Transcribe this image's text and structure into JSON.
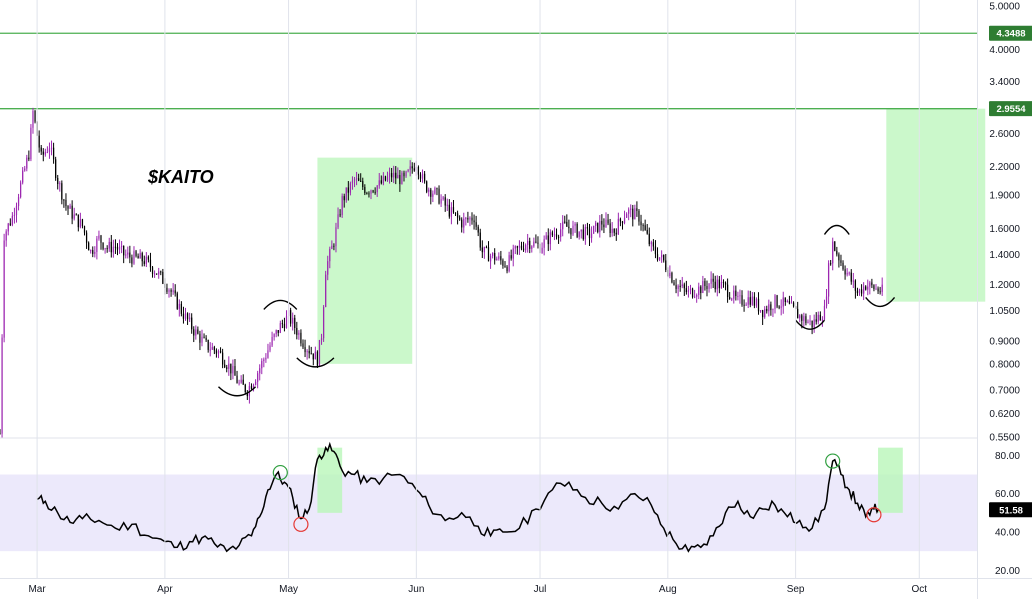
{
  "title": "$KAITO",
  "colors": {
    "up": "#9c27b0",
    "down": "#000000",
    "level_line": "#4caf50",
    "target_box": "#b9f6b9",
    "rsi_band": "#ece9fb",
    "rsi_line": "#000000",
    "grid": "#e0e3eb",
    "badge_green": "#2e7d32",
    "badge_black": "#000000",
    "circle_green": "#2e9e3e",
    "circle_red": "#e53935"
  },
  "chart_data": [
    {
      "type": "candlestick",
      "name": "price",
      "title": "$KAITO",
      "yscale": "log",
      "ylim": [
        0.55,
        5.0
      ],
      "xlim": [
        "2025-02-20",
        "2025-10-15"
      ],
      "x_ticks": [
        {
          "label": "Mar",
          "date": "2025-03-01"
        },
        {
          "label": "Apr",
          "date": "2025-04-01"
        },
        {
          "label": "May",
          "date": "2025-05-01"
        },
        {
          "label": "Jun",
          "date": "2025-06-01"
        },
        {
          "label": "Jul",
          "date": "2025-07-01"
        },
        {
          "label": "Aug",
          "date": "2025-08-01"
        },
        {
          "label": "Sep",
          "date": "2025-09-01"
        },
        {
          "label": "Oct",
          "date": "2025-10-01"
        }
      ],
      "y_ticks": [
        "5.0000",
        "4.0000",
        "3.4000",
        "2.6000",
        "2.2000",
        "1.9000",
        "1.6000",
        "1.4000",
        "1.2000",
        "1.0500",
        "0.9000",
        "0.8000",
        "0.7000",
        "0.6200",
        "0.5500"
      ],
      "levels": [
        {
          "label": "4.3488",
          "value": 4.3488
        },
        {
          "label": "2.9554",
          "value": 2.9554
        }
      ],
      "path_points": [
        [
          "2025-02-20",
          0.56
        ],
        [
          "2025-02-21",
          1.55
        ],
        [
          "2025-02-23",
          1.7
        ],
        [
          "2025-02-25",
          2.0
        ],
        [
          "2025-02-27",
          2.35
        ],
        [
          "2025-02-28",
          2.9
        ],
        [
          "2025-03-02",
          2.3
        ],
        [
          "2025-03-04",
          2.45
        ],
        [
          "2025-03-06",
          2.05
        ],
        [
          "2025-03-08",
          1.8
        ],
        [
          "2025-03-10",
          1.7
        ],
        [
          "2025-03-12",
          1.62
        ],
        [
          "2025-03-14",
          1.42
        ],
        [
          "2025-03-16",
          1.52
        ],
        [
          "2025-03-18",
          1.45
        ],
        [
          "2025-03-20",
          1.46
        ],
        [
          "2025-03-22",
          1.4
        ],
        [
          "2025-03-24",
          1.38
        ],
        [
          "2025-03-27",
          1.36
        ],
        [
          "2025-03-30",
          1.28
        ],
        [
          "2025-04-02",
          1.18
        ],
        [
          "2025-04-05",
          1.05
        ],
        [
          "2025-04-08",
          0.95
        ],
        [
          "2025-04-11",
          0.88
        ],
        [
          "2025-04-14",
          0.85
        ],
        [
          "2025-04-17",
          0.78
        ],
        [
          "2025-04-19",
          0.72
        ],
        [
          "2025-04-21",
          0.7
        ],
        [
          "2025-04-23",
          0.75
        ],
        [
          "2025-04-25",
          0.82
        ],
        [
          "2025-04-27",
          0.9
        ],
        [
          "2025-04-29",
          0.97
        ],
        [
          "2025-05-01",
          1.02
        ],
        [
          "2025-05-03",
          0.95
        ],
        [
          "2025-05-05",
          0.88
        ],
        [
          "2025-05-07",
          0.84
        ],
        [
          "2025-05-08",
          0.82
        ],
        [
          "2025-05-09",
          0.93
        ],
        [
          "2025-05-10",
          1.3
        ],
        [
          "2025-05-12",
          1.5
        ],
        [
          "2025-05-14",
          1.85
        ],
        [
          "2025-05-17",
          2.05
        ],
        [
          "2025-05-20",
          1.95
        ],
        [
          "2025-05-23",
          2.0
        ],
        [
          "2025-05-26",
          2.1
        ],
        [
          "2025-05-29",
          2.05
        ],
        [
          "2025-06-01",
          2.25
        ],
        [
          "2025-06-03",
          2.0
        ],
        [
          "2025-06-06",
          1.9
        ],
        [
          "2025-06-09",
          1.75
        ],
        [
          "2025-06-12",
          1.65
        ],
        [
          "2025-06-15",
          1.7
        ],
        [
          "2025-06-17",
          1.42
        ],
        [
          "2025-06-20",
          1.38
        ],
        [
          "2025-06-23",
          1.33
        ],
        [
          "2025-06-25",
          1.42
        ],
        [
          "2025-06-28",
          1.5
        ],
        [
          "2025-07-01",
          1.46
        ],
        [
          "2025-07-04",
          1.55
        ],
        [
          "2025-07-07",
          1.62
        ],
        [
          "2025-07-10",
          1.58
        ],
        [
          "2025-07-13",
          1.55
        ],
        [
          "2025-07-16",
          1.65
        ],
        [
          "2025-07-19",
          1.58
        ],
        [
          "2025-07-22",
          1.75
        ],
        [
          "2025-07-25",
          1.7
        ],
        [
          "2025-07-28",
          1.45
        ],
        [
          "2025-07-31",
          1.35
        ],
        [
          "2025-08-03",
          1.2
        ],
        [
          "2025-08-06",
          1.15
        ],
        [
          "2025-08-09",
          1.18
        ],
        [
          "2025-08-12",
          1.22
        ],
        [
          "2025-08-15",
          1.18
        ],
        [
          "2025-08-18",
          1.1
        ],
        [
          "2025-08-21",
          1.12
        ],
        [
          "2025-08-24",
          1.05
        ],
        [
          "2025-08-27",
          1.1
        ],
        [
          "2025-08-30",
          1.08
        ],
        [
          "2025-09-02",
          1.02
        ],
        [
          "2025-09-05",
          0.98
        ],
        [
          "2025-09-08",
          1.05
        ],
        [
          "2025-09-09",
          1.3
        ],
        [
          "2025-09-10",
          1.48
        ],
        [
          "2025-09-12",
          1.35
        ],
        [
          "2025-09-14",
          1.25
        ],
        [
          "2025-09-16",
          1.15
        ],
        [
          "2025-09-18",
          1.2
        ],
        [
          "2025-09-20",
          1.18
        ],
        [
          "2025-09-22",
          1.16
        ]
      ],
      "target_boxes": [
        {
          "x0": "2025-05-08",
          "x1": "2025-05-31",
          "y0": 0.8,
          "y1": 2.3
        },
        {
          "x0": "2025-09-23",
          "x1": "2025-10-17",
          "y0": 1.1,
          "y1": 2.9554
        }
      ],
      "annotations": [
        {
          "shape": "cup",
          "x0": "2025-04-14",
          "x1": "2025-04-23",
          "y": 0.69
        },
        {
          "shape": "cap",
          "x0": "2025-04-25",
          "x1": "2025-05-03",
          "y": 1.09
        },
        {
          "shape": "cup",
          "x0": "2025-05-03",
          "x1": "2025-05-12",
          "y": 0.8
        },
        {
          "shape": "cup",
          "x0": "2025-09-01",
          "x1": "2025-09-08",
          "y": 0.97
        },
        {
          "shape": "cap",
          "x0": "2025-09-08",
          "x1": "2025-09-14",
          "y": 1.6
        },
        {
          "shape": "cup",
          "x0": "2025-09-18",
          "x1": "2025-09-25",
          "y": 1.09
        }
      ]
    },
    {
      "type": "line",
      "name": "rsi",
      "ylim": [
        16,
        88
      ],
      "y_ticks": [
        "80.00",
        "60.00",
        "40.00",
        "20.00"
      ],
      "band": [
        30,
        70
      ],
      "last_value": {
        "label": "51.58",
        "value": 51.58
      },
      "x": [
        "2025-03-01",
        "2025-03-03",
        "2025-03-06",
        "2025-03-09",
        "2025-03-12",
        "2025-03-16",
        "2025-03-20",
        "2025-03-24",
        "2025-03-28",
        "2025-04-01",
        "2025-04-04",
        "2025-04-07",
        "2025-04-10",
        "2025-04-13",
        "2025-04-16",
        "2025-04-19",
        "2025-04-22",
        "2025-04-24",
        "2025-04-26",
        "2025-04-28",
        "2025-04-30",
        "2025-05-02",
        "2025-05-04",
        "2025-05-06",
        "2025-05-08",
        "2025-05-10",
        "2025-05-12",
        "2025-05-14",
        "2025-05-17",
        "2025-05-20",
        "2025-05-24",
        "2025-05-28",
        "2025-06-01",
        "2025-06-04",
        "2025-06-08",
        "2025-06-12",
        "2025-06-16",
        "2025-06-19",
        "2025-06-22",
        "2025-06-26",
        "2025-06-30",
        "2025-07-04",
        "2025-07-08",
        "2025-07-12",
        "2025-07-16",
        "2025-07-20",
        "2025-07-24",
        "2025-07-28",
        "2025-07-31",
        "2025-08-03",
        "2025-08-06",
        "2025-08-09",
        "2025-08-12",
        "2025-08-15",
        "2025-08-18",
        "2025-08-21",
        "2025-08-24",
        "2025-08-27",
        "2025-08-30",
        "2025-09-02",
        "2025-09-05",
        "2025-09-08",
        "2025-09-10",
        "2025-09-12",
        "2025-09-14",
        "2025-09-16",
        "2025-09-18",
        "2025-09-20",
        "2025-09-21"
      ],
      "values": [
        57,
        56,
        50,
        45,
        47,
        46,
        42,
        44,
        38,
        35,
        32,
        35,
        37,
        34,
        30,
        33,
        38,
        48,
        62,
        70,
        66,
        58,
        47,
        52,
        78,
        84,
        82,
        72,
        70,
        66,
        68,
        70,
        62,
        54,
        46,
        50,
        43,
        38,
        40,
        42,
        52,
        62,
        66,
        58,
        55,
        52,
        60,
        54,
        42,
        34,
        30,
        32,
        38,
        50,
        56,
        48,
        52,
        54,
        48,
        46,
        42,
        52,
        77,
        70,
        62,
        55,
        48,
        52,
        51.58
      ],
      "annotations": [
        {
          "shape": "circle",
          "color": "green",
          "x": "2025-04-29",
          "y": 71
        },
        {
          "shape": "circle",
          "color": "red",
          "x": "2025-05-04",
          "y": 44
        },
        {
          "shape": "circle",
          "color": "green",
          "x": "2025-09-10",
          "y": 77
        },
        {
          "shape": "circle",
          "color": "red",
          "x": "2025-09-20",
          "y": 49
        }
      ],
      "target_box": {
        "x0": "2025-09-21",
        "x1": "2025-09-27",
        "y0": 50,
        "y1": 84
      },
      "target_box_may": {
        "x0": "2025-05-08",
        "x1": "2025-05-14",
        "y0": 50,
        "y1": 84
      }
    }
  ]
}
